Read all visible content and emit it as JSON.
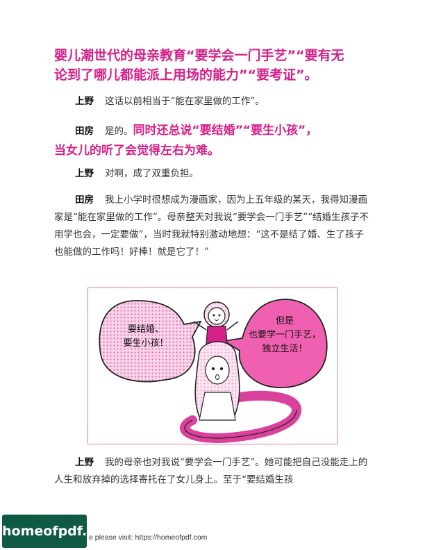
{
  "heading": {
    "line1": "婴儿潮世代的母亲教育“要学会一门手艺”“要有无",
    "line2": "论到了哪儿都能派上用场的能力”“要考证”。"
  },
  "paragraphs": [
    {
      "speaker": "上野",
      "text": "这话以前相当于“能在家里做的工作”。"
    },
    {
      "speaker": "田房",
      "text": "是的。",
      "highlight": "同时还总说“要结婚”“要生小孩”，",
      "highlight2": "当女儿的听了会觉得左右为难。"
    },
    {
      "speaker": "上野",
      "text": "对啊，成了双重负担。"
    },
    {
      "speaker": "田房",
      "text": "我上小学时很想成为漫画家，因为上五年级的某天，我得知漫画家是“能在家里做的工作”。母亲整天对我说“要学会一门手艺”“结婚生孩子不用学也会，一定要做”，当时我就特别激动地想：“这不是结了婚、生了孩子也能做的工作吗！好棒！就是它了！”"
    },
    {
      "speaker": "上野",
      "text": "我的母亲也对我说“要学会一门手艺”。她可能把自己没能走上的人生和放弃掉的选择寄托在了女儿身上。至于“要结婚生孩"
    }
  ],
  "illustration": {
    "left_bubble": [
      "要结婚、",
      "要生小孩！"
    ],
    "right_bubble": [
      "但是",
      "也要学一门手艺，",
      "独立生活！"
    ]
  },
  "footer": {
    "badge": "homeofpdf.com",
    "text": "e please visit: https://homeofpdf.com"
  },
  "colors": {
    "accent": "#d4208a",
    "bubble_pink": "#f060b0",
    "footer_green": "#0f5a44"
  }
}
